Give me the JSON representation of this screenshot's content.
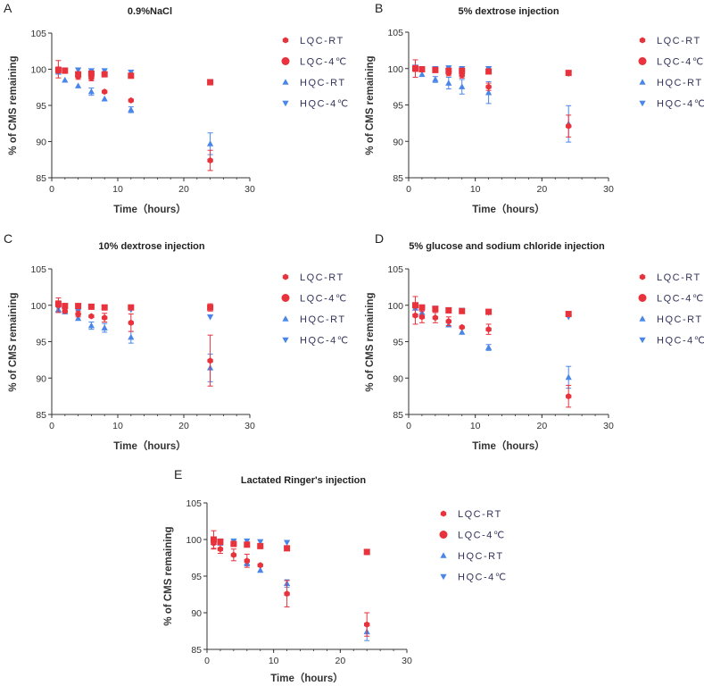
{
  "chart_data": [
    {
      "type": "scatter",
      "panel_letter": "A",
      "title": "0.9%NaCl",
      "xlabel": "Time（hours）",
      "ylabel": "% of CMS remaining",
      "xlim": [
        0,
        30
      ],
      "ylim": [
        85,
        105
      ],
      "xticks": [
        0,
        10,
        20,
        30
      ],
      "yticks": [
        85,
        90,
        95,
        100,
        105
      ],
      "legend_position": "right",
      "x": [
        1,
        2,
        4,
        6,
        8,
        12,
        24
      ],
      "series": [
        {
          "name": "LQC-RT",
          "values": [
            100.0,
            99.8,
            99.0,
            98.8,
            96.9,
            95.7,
            87.4
          ],
          "errors": [
            1.2,
            0.3,
            0.4,
            0.4,
            0.3,
            0.3,
            1.4
          ]
        },
        {
          "name": "LQC-4℃",
          "values": [
            99.9,
            99.8,
            99.3,
            99.4,
            99.3,
            99.1,
            98.2
          ],
          "errors": [
            0.4,
            0.3,
            0.3,
            0.3,
            0.3,
            0.3,
            0.3
          ]
        },
        {
          "name": "HQC-RT",
          "values": [
            99.6,
            98.5,
            97.7,
            96.9,
            95.9,
            94.4,
            89.7
          ],
          "errors": [
            0.3,
            0.2,
            0.3,
            0.5,
            0.3,
            0.4,
            1.5
          ]
        },
        {
          "name": "HQC-4℃",
          "values": [
            99.6,
            99.9,
            99.9,
            99.8,
            99.8,
            99.6,
            98.3
          ],
          "errors": [
            0.3,
            0.2,
            0.2,
            0.2,
            0.2,
            0.2,
            0.3
          ]
        }
      ]
    },
    {
      "type": "scatter",
      "panel_letter": "B",
      "title": "5% dextrose injection",
      "xlabel": "Time（hours）",
      "ylabel": "% of CMS remaining",
      "xlim": [
        0,
        30
      ],
      "ylim": [
        85,
        105
      ],
      "xticks": [
        0,
        10,
        20,
        30
      ],
      "yticks": [
        85,
        90,
        95,
        100,
        105
      ],
      "legend_position": "right",
      "x": [
        1,
        2,
        4,
        6,
        8,
        12,
        24
      ],
      "series": [
        {
          "name": "LQC-RT",
          "values": [
            100.0,
            99.9,
            99.8,
            99.4,
            99.1,
            97.5,
            92.1
          ],
          "errors": [
            1.2,
            0.3,
            0.3,
            0.4,
            0.4,
            0.5,
            1.5
          ]
        },
        {
          "name": "LQC-4℃",
          "values": [
            100.0,
            99.9,
            99.8,
            99.7,
            99.7,
            99.6,
            99.4
          ],
          "errors": [
            0.4,
            0.3,
            0.3,
            0.3,
            0.3,
            0.3,
            0.3
          ]
        },
        {
          "name": "HQC-RT",
          "values": [
            100.0,
            99.2,
            98.5,
            98.0,
            97.5,
            96.7,
            92.4
          ],
          "errors": [
            0.3,
            0.3,
            0.4,
            0.8,
            1.0,
            1.5,
            2.5
          ]
        },
        {
          "name": "HQC-4℃",
          "values": [
            100.2,
            100.0,
            100.0,
            100.1,
            100.0,
            100.0,
            99.3
          ],
          "errors": [
            0.2,
            0.2,
            0.2,
            0.2,
            0.2,
            0.2,
            0.3
          ]
        }
      ]
    },
    {
      "type": "scatter",
      "panel_letter": "C",
      "title": "10% dextrose injection",
      "xlabel": "Time（hours）",
      "ylabel": "% of CMS remaining",
      "xlim": [
        0,
        30
      ],
      "ylim": [
        85,
        105
      ],
      "xticks": [
        0,
        10,
        20,
        30
      ],
      "yticks": [
        85,
        90,
        95,
        100,
        105
      ],
      "legend_position": "right",
      "x": [
        1,
        2,
        4,
        6,
        8,
        12,
        24
      ],
      "series": [
        {
          "name": "LQC-RT",
          "values": [
            100.0,
            99.2,
            98.8,
            98.5,
            98.3,
            97.6,
            92.4
          ],
          "errors": [
            1.0,
            0.3,
            0.4,
            0.3,
            0.6,
            1.2,
            3.5
          ]
        },
        {
          "name": "LQC-4℃",
          "values": [
            100.2,
            99.9,
            99.9,
            99.8,
            99.7,
            99.7,
            99.7
          ],
          "errors": [
            0.4,
            0.3,
            0.2,
            0.2,
            0.2,
            0.2,
            0.5
          ]
        },
        {
          "name": "HQC-RT",
          "values": [
            99.4,
            99.1,
            98.2,
            97.2,
            96.9,
            95.6,
            91.4
          ],
          "errors": [
            0.3,
            0.3,
            0.3,
            0.5,
            0.6,
            0.8,
            1.9
          ]
        },
        {
          "name": "HQC-4℃",
          "values": [
            99.6,
            99.4,
            99.2,
            99.8,
            99.7,
            99.4,
            98.4
          ],
          "errors": [
            0.2,
            0.2,
            0.2,
            0.2,
            0.2,
            0.2,
            0.3
          ]
        }
      ]
    },
    {
      "type": "scatter",
      "panel_letter": "D",
      "title": "5% glucose and sodium chloride injection",
      "xlabel": "Time（hours）",
      "ylabel": "% of CMS remaining",
      "xlim": [
        0,
        30
      ],
      "ylim": [
        85,
        105
      ],
      "xticks": [
        0,
        10,
        20,
        30
      ],
      "yticks": [
        85,
        90,
        95,
        100,
        105
      ],
      "legend_position": "right",
      "x": [
        1,
        2,
        4,
        6,
        8,
        12,
        24
      ],
      "series": [
        {
          "name": "LQC-RT",
          "values": [
            98.6,
            98.4,
            98.3,
            97.8,
            97.0,
            96.7,
            87.5
          ],
          "errors": [
            1.2,
            0.8,
            0.7,
            0.6,
            0.3,
            0.7,
            1.5
          ]
        },
        {
          "name": "LQC-4℃",
          "values": [
            100.0,
            99.7,
            99.5,
            99.3,
            99.2,
            99.1,
            98.8
          ],
          "errors": [
            1.2,
            0.3,
            0.3,
            0.3,
            0.3,
            0.3,
            0.3
          ]
        },
        {
          "name": "HQC-RT",
          "values": [
            99.6,
            99.0,
            99.5,
            97.3,
            96.3,
            94.2,
            90.1
          ],
          "errors": [
            0.3,
            0.3,
            0.3,
            0.3,
            0.3,
            0.4,
            1.5
          ]
        },
        {
          "name": "HQC-4℃",
          "values": [
            99.8,
            99.5,
            99.6,
            99.4,
            99.3,
            99.0,
            98.4
          ],
          "errors": [
            0.2,
            0.2,
            0.2,
            0.2,
            0.2,
            0.2,
            0.3
          ]
        }
      ]
    },
    {
      "type": "scatter",
      "panel_letter": "E",
      "title": "Lactated Ringer's injection",
      "xlabel": "Time（hours）",
      "ylabel": "% of CMS remaining",
      "xlim": [
        0,
        30
      ],
      "ylim": [
        85,
        105
      ],
      "xticks": [
        0,
        10,
        20,
        30
      ],
      "yticks": [
        85,
        90,
        95,
        100,
        105
      ],
      "legend_position": "right",
      "x": [
        1,
        2,
        4,
        6,
        8,
        12,
        24
      ],
      "series": [
        {
          "name": "LQC-RT",
          "values": [
            99.5,
            98.7,
            97.9,
            97.1,
            96.5,
            92.6,
            88.4
          ],
          "errors": [
            0.8,
            0.6,
            0.8,
            0.9,
            0.3,
            1.8,
            1.6
          ]
        },
        {
          "name": "LQC-4℃",
          "values": [
            100.0,
            99.7,
            99.4,
            99.3,
            99.1,
            98.8,
            98.3
          ],
          "errors": [
            1.2,
            0.3,
            0.3,
            0.3,
            0.3,
            0.3,
            0.3
          ]
        },
        {
          "name": "HQC-RT",
          "values": [
            99.6,
            99.5,
            99.5,
            96.8,
            95.8,
            94.0,
            87.4
          ],
          "errors": [
            0.3,
            0.3,
            0.3,
            0.4,
            0.3,
            0.5,
            1.2
          ]
        },
        {
          "name": "HQC-4℃",
          "values": [
            99.6,
            99.8,
            99.8,
            99.8,
            99.7,
            99.6,
            98.3
          ],
          "errors": [
            0.2,
            0.2,
            0.2,
            0.2,
            0.2,
            0.2,
            0.3
          ]
        }
      ]
    }
  ],
  "colors": {
    "red": "#e8323c",
    "blue": "#4a86e8",
    "axis": "#333333"
  }
}
